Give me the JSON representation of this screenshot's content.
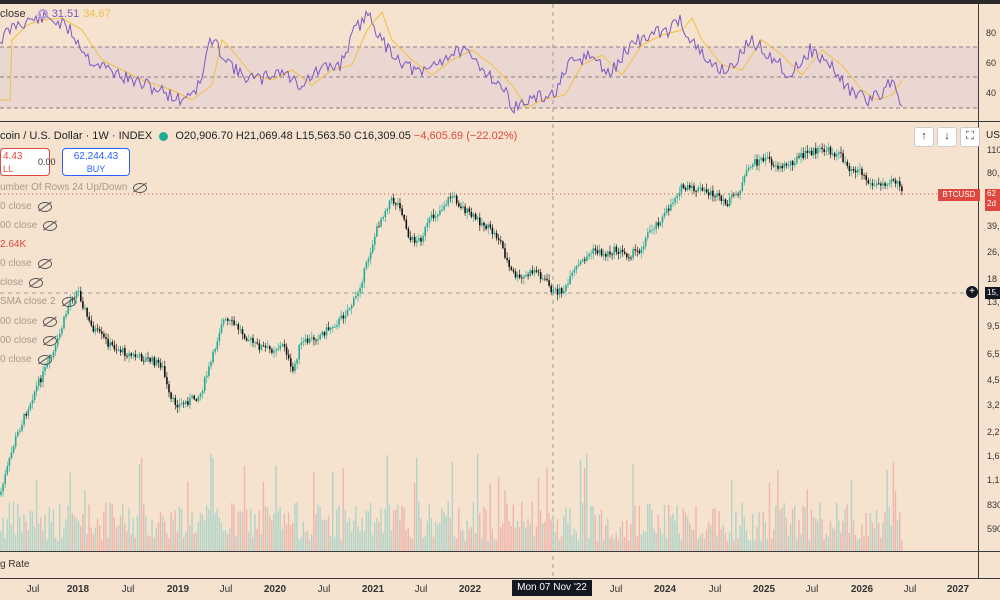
{
  "rsi": {
    "legend_label": "close",
    "value_rsi": "31.51",
    "value_ma": "34.67",
    "levels": [
      "80",
      "60",
      "40"
    ]
  },
  "symbol": {
    "title": "coin / U.S. Dollar · 1W · INDEX",
    "open": "O20,906.70",
    "high": "H21,069.48",
    "low": "L15,563.50",
    "close": "C16,309.05",
    "change": "−4,605.69 (−22.02%)"
  },
  "trade": {
    "sell_price": "4.43",
    "sell_label": "LL",
    "spread": "0.00",
    "buy_price": "62,244.43",
    "buy_label": "BUY"
  },
  "indicators": [
    {
      "label": "umber Of Rows 24 Up/Down",
      "color": "gray"
    },
    {
      "label": "0 close",
      "color": "gray"
    },
    {
      "label": "00 close",
      "color": "gray"
    },
    {
      "label": "2.64K",
      "color": "red"
    },
    {
      "label": "0 close",
      "color": "gray"
    },
    {
      "label": "close",
      "color": "gray"
    },
    {
      "label": "SMA close 2",
      "color": "gray"
    },
    {
      "label": "00 close",
      "color": "gray"
    },
    {
      "label": "00 close",
      "color": "gray"
    },
    {
      "label": "0 close",
      "color": "gray"
    }
  ],
  "nav": {
    "up": "↑",
    "down": "↓",
    "fit": "⛶"
  },
  "currency": "US",
  "price_axis": [
    "110",
    "80,",
    "62",
    "39,",
    "26,",
    "18",
    "13,",
    "9,5",
    "6,5",
    "4,5",
    "3,2",
    "2,2",
    "1,6",
    "1,1",
    "830",
    "590"
  ],
  "last_price": {
    "symbol_tag": "BTCUSD",
    "value": "62",
    "countdown": "2d"
  },
  "cross_price": "15,",
  "crosshair_date": "Mon 07 Nov '22",
  "bottom_indicator_label": "g Rate",
  "x_axis": [
    {
      "label": "Jul",
      "bold": false,
      "x": 33
    },
    {
      "label": "2018",
      "bold": true,
      "x": 78
    },
    {
      "label": "Jul",
      "bold": false,
      "x": 128
    },
    {
      "label": "2019",
      "bold": true,
      "x": 178
    },
    {
      "label": "Jul",
      "bold": false,
      "x": 226
    },
    {
      "label": "2020",
      "bold": true,
      "x": 275
    },
    {
      "label": "Jul",
      "bold": false,
      "x": 324
    },
    {
      "label": "2021",
      "bold": true,
      "x": 373
    },
    {
      "label": "Jul",
      "bold": false,
      "x": 421
    },
    {
      "label": "2022",
      "bold": true,
      "x": 470
    },
    {
      "label": "Jul",
      "bold": false,
      "x": 616
    },
    {
      "label": "2024",
      "bold": true,
      "x": 665
    },
    {
      "label": "Jul",
      "bold": false,
      "x": 715
    },
    {
      "label": "2025",
      "bold": true,
      "x": 764
    },
    {
      "label": "Jul",
      "bold": false,
      "x": 812
    },
    {
      "label": "2026",
      "bold": true,
      "x": 862
    },
    {
      "label": "Jul",
      "bold": false,
      "x": 910
    },
    {
      "label": "2027",
      "bold": true,
      "x": 958
    }
  ],
  "colors": {
    "background": "#f5e3cf",
    "up": "#22ab94",
    "down": "#111111",
    "rsi": "#7e57c2",
    "rsi_ma": "#f0c040",
    "accent_red": "#e0473e",
    "accent_blue": "#2962ff"
  }
}
